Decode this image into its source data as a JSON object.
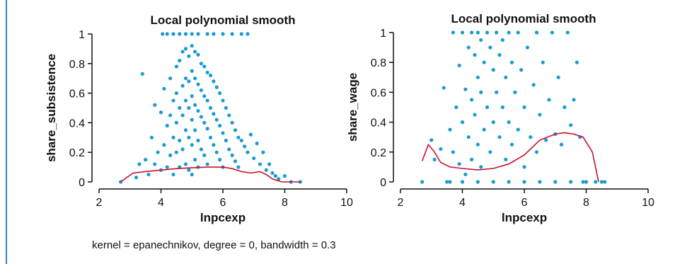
{
  "colors": {
    "points": "#1a9bd0",
    "smooth": "#c8102e",
    "axis": "#111111",
    "rule": "#2a86c4"
  },
  "footnote": "kernel = epanechnikov, degree = 0, bandwidth = 0.3",
  "chart_data": [
    {
      "type": "scatter",
      "title": "Local polynomial smooth",
      "xlabel": "lnpcexp",
      "ylabel": "share_subsistence",
      "xlim": [
        2,
        10
      ],
      "ylim": [
        0,
        1
      ],
      "x_ticks": [
        "2",
        "4",
        "6",
        "8",
        "10"
      ],
      "y_ticks": [
        "0",
        "0.2",
        "0.4",
        "0.6",
        "0.8",
        "1"
      ],
      "series": [
        {
          "kind": "smooth",
          "x": [
            2.7,
            3.1,
            3.5,
            4.0,
            4.5,
            5.0,
            5.5,
            6.0,
            6.3,
            6.6,
            6.9,
            7.2,
            7.4,
            7.6,
            7.9,
            8.3,
            8.5
          ],
          "y": [
            0.0,
            0.06,
            0.07,
            0.08,
            0.09,
            0.095,
            0.1,
            0.1,
            0.09,
            0.07,
            0.06,
            0.07,
            0.05,
            0.02,
            0.0,
            0.0,
            0.0
          ]
        }
      ],
      "scatter_points": [
        [
          2.7,
          0.0
        ],
        [
          3.2,
          0.03
        ],
        [
          3.3,
          0.12
        ],
        [
          3.4,
          0.73
        ],
        [
          3.5,
          0.15
        ],
        [
          3.6,
          0.05
        ],
        [
          3.7,
          0.3
        ],
        [
          3.8,
          0.52
        ],
        [
          3.8,
          0.12
        ],
        [
          3.9,
          0.2
        ],
        [
          4.0,
          0.47
        ],
        [
          4.0,
          0.08
        ],
        [
          4.1,
          0.63
        ],
        [
          4.1,
          0.25
        ],
        [
          4.2,
          0.38
        ],
        [
          4.2,
          0.1
        ],
        [
          4.3,
          0.7
        ],
        [
          4.3,
          0.45
        ],
        [
          4.3,
          0.18
        ],
        [
          4.4,
          0.55
        ],
        [
          4.4,
          0.3
        ],
        [
          4.4,
          0.05
        ],
        [
          4.5,
          0.78
        ],
        [
          4.5,
          0.6
        ],
        [
          4.5,
          0.4
        ],
        [
          4.5,
          0.2
        ],
        [
          4.6,
          0.82
        ],
        [
          4.6,
          0.5
        ],
        [
          4.6,
          0.28
        ],
        [
          4.6,
          0.1
        ],
        [
          4.7,
          0.88
        ],
        [
          4.7,
          0.65
        ],
        [
          4.7,
          0.45
        ],
        [
          4.7,
          0.22
        ],
        [
          4.8,
          0.9
        ],
        [
          4.8,
          0.7
        ],
        [
          4.8,
          0.55
        ],
        [
          4.8,
          0.35
        ],
        [
          4.8,
          0.12
        ],
        [
          4.9,
          0.85
        ],
        [
          4.9,
          0.68
        ],
        [
          4.9,
          0.5
        ],
        [
          4.9,
          0.3
        ],
        [
          4.9,
          0.08
        ],
        [
          5.0,
          0.92
        ],
        [
          5.0,
          0.75
        ],
        [
          5.0,
          0.58
        ],
        [
          5.0,
          0.42
        ],
        [
          5.0,
          0.25
        ],
        [
          5.0,
          0.05
        ],
        [
          5.1,
          0.88
        ],
        [
          5.1,
          0.7
        ],
        [
          5.1,
          0.52
        ],
        [
          5.1,
          0.35
        ],
        [
          5.1,
          0.15
        ],
        [
          5.2,
          0.86
        ],
        [
          5.2,
          0.66
        ],
        [
          5.2,
          0.48
        ],
        [
          5.2,
          0.28
        ],
        [
          5.2,
          0.1
        ],
        [
          5.3,
          0.8
        ],
        [
          5.3,
          0.62
        ],
        [
          5.3,
          0.44
        ],
        [
          5.3,
          0.22
        ],
        [
          5.4,
          0.78
        ],
        [
          5.4,
          0.58
        ],
        [
          5.4,
          0.4
        ],
        [
          5.4,
          0.18
        ],
        [
          5.5,
          0.74
        ],
        [
          5.5,
          0.55
        ],
        [
          5.5,
          0.36
        ],
        [
          5.5,
          0.12
        ],
        [
          5.6,
          0.72
        ],
        [
          5.6,
          0.5
        ],
        [
          5.6,
          0.3
        ],
        [
          5.7,
          0.68
        ],
        [
          5.7,
          0.46
        ],
        [
          5.7,
          0.25
        ],
        [
          5.8,
          0.64
        ],
        [
          5.8,
          0.42
        ],
        [
          5.8,
          0.2
        ],
        [
          5.9,
          0.6
        ],
        [
          5.9,
          0.38
        ],
        [
          5.9,
          0.15
        ],
        [
          6.0,
          0.55
        ],
        [
          6.0,
          0.33
        ],
        [
          6.0,
          0.1
        ],
        [
          6.1,
          0.5
        ],
        [
          6.1,
          0.28
        ],
        [
          6.2,
          0.45
        ],
        [
          6.2,
          0.22
        ],
        [
          6.3,
          0.4
        ],
        [
          6.3,
          0.18
        ],
        [
          6.4,
          0.35
        ],
        [
          6.4,
          0.14
        ],
        [
          6.5,
          0.3
        ],
        [
          6.5,
          0.1
        ],
        [
          6.6,
          0.28
        ],
        [
          6.7,
          0.24
        ],
        [
          6.8,
          0.2
        ],
        [
          6.9,
          0.32
        ],
        [
          7.0,
          0.16
        ],
        [
          7.1,
          0.26
        ],
        [
          7.2,
          0.12
        ],
        [
          7.3,
          0.2
        ],
        [
          7.4,
          0.08
        ],
        [
          7.5,
          0.12
        ],
        [
          7.6,
          0.06
        ],
        [
          7.7,
          0.04
        ],
        [
          7.8,
          0.02
        ],
        [
          8.0,
          0.04
        ],
        [
          8.2,
          0.0
        ],
        [
          8.5,
          0.0
        ],
        [
          4.05,
          1.0
        ],
        [
          4.2,
          1.0
        ],
        [
          4.4,
          1.0
        ],
        [
          4.6,
          1.0
        ],
        [
          4.8,
          1.0
        ],
        [
          5.0,
          1.0
        ],
        [
          5.2,
          1.0
        ],
        [
          5.5,
          1.0
        ],
        [
          5.7,
          1.0
        ],
        [
          6.0,
          1.0
        ],
        [
          6.3,
          1.0
        ],
        [
          6.6,
          1.0
        ],
        [
          6.8,
          1.0
        ]
      ]
    },
    {
      "type": "scatter",
      "title": "Local polynomial smooth",
      "xlabel": "lnpcexp",
      "ylabel": "share_wage",
      "xlim": [
        2,
        10
      ],
      "ylim": [
        0,
        1
      ],
      "x_ticks": [
        "2",
        "4",
        "6",
        "8",
        "10"
      ],
      "y_ticks": [
        "0",
        "0.2",
        "0.4",
        "0.6",
        "0.8",
        "1"
      ],
      "series": [
        {
          "kind": "smooth",
          "x": [
            2.7,
            2.9,
            3.1,
            3.3,
            3.6,
            4.0,
            4.5,
            5.0,
            5.5,
            6.0,
            6.5,
            7.0,
            7.3,
            7.6,
            7.9,
            8.2,
            8.4
          ],
          "y": [
            0.14,
            0.25,
            0.2,
            0.13,
            0.1,
            0.09,
            0.08,
            0.09,
            0.12,
            0.18,
            0.28,
            0.32,
            0.33,
            0.32,
            0.3,
            0.2,
            0.0
          ]
        }
      ],
      "scatter_points": [
        [
          2.7,
          0.0
        ],
        [
          3.0,
          0.28
        ],
        [
          3.1,
          0.15
        ],
        [
          3.3,
          0.22
        ],
        [
          3.4,
          0.63
        ],
        [
          3.5,
          0.0
        ],
        [
          3.6,
          0.35
        ],
        [
          3.7,
          1.0
        ],
        [
          3.7,
          0.2
        ],
        [
          3.8,
          0.5
        ],
        [
          3.9,
          0.78
        ],
        [
          3.9,
          0.12
        ],
        [
          4.0,
          1.0
        ],
        [
          4.0,
          0.4
        ],
        [
          4.1,
          0.62
        ],
        [
          4.1,
          0.05
        ],
        [
          4.2,
          0.9
        ],
        [
          4.2,
          0.3
        ],
        [
          4.3,
          1.0
        ],
        [
          4.3,
          0.55
        ],
        [
          4.3,
          0.15
        ],
        [
          4.4,
          0.85
        ],
        [
          4.4,
          0.45
        ],
        [
          4.5,
          1.0
        ],
        [
          4.5,
          0.7
        ],
        [
          4.5,
          0.25
        ],
        [
          4.6,
          0.95
        ],
        [
          4.6,
          0.6
        ],
        [
          4.6,
          0.1
        ],
        [
          4.7,
          0.8
        ],
        [
          4.7,
          0.35
        ],
        [
          4.8,
          1.0
        ],
        [
          4.8,
          0.5
        ],
        [
          4.9,
          0.9
        ],
        [
          4.9,
          0.2
        ],
        [
          5.0,
          0.75
        ],
        [
          5.0,
          0.4
        ],
        [
          5.1,
          1.0
        ],
        [
          5.1,
          0.6
        ],
        [
          5.2,
          0.85
        ],
        [
          5.2,
          0.3
        ],
        [
          5.3,
          0.95
        ],
        [
          5.3,
          0.5
        ],
        [
          5.4,
          0.7
        ],
        [
          5.4,
          0.15
        ],
        [
          5.5,
          1.0
        ],
        [
          5.5,
          0.4
        ],
        [
          5.6,
          0.8
        ],
        [
          5.6,
          0.25
        ],
        [
          5.7,
          0.6
        ],
        [
          5.8,
          1.0
        ],
        [
          5.8,
          0.35
        ],
        [
          5.9,
          0.75
        ],
        [
          6.0,
          0.5
        ],
        [
          6.0,
          0.1
        ],
        [
          6.1,
          0.9
        ],
        [
          6.2,
          0.3
        ],
        [
          6.3,
          0.65
        ],
        [
          6.4,
          1.0
        ],
        [
          6.4,
          0.2
        ],
        [
          6.5,
          0.45
        ],
        [
          6.6,
          0.8
        ],
        [
          6.7,
          0.28
        ],
        [
          6.8,
          0.55
        ],
        [
          6.9,
          1.0
        ],
        [
          7.0,
          0.32
        ],
        [
          7.1,
          0.7
        ],
        [
          7.2,
          0.25
        ],
        [
          7.3,
          0.5
        ],
        [
          7.4,
          1.0
        ],
        [
          7.5,
          0.38
        ],
        [
          7.6,
          0.55
        ],
        [
          7.7,
          0.8
        ],
        [
          7.8,
          0.3
        ],
        [
          8.0,
          0.0
        ],
        [
          8.3,
          0.0
        ],
        [
          8.5,
          0.0
        ],
        [
          8.6,
          0.0
        ],
        [
          3.6,
          0.0
        ],
        [
          4.0,
          0.0
        ],
        [
          4.5,
          0.0
        ],
        [
          5.0,
          0.0
        ],
        [
          5.5,
          0.0
        ],
        [
          6.0,
          0.0
        ],
        [
          6.5,
          0.0
        ],
        [
          7.0,
          0.0
        ],
        [
          7.5,
          0.0
        ],
        [
          7.9,
          0.0
        ]
      ]
    }
  ]
}
